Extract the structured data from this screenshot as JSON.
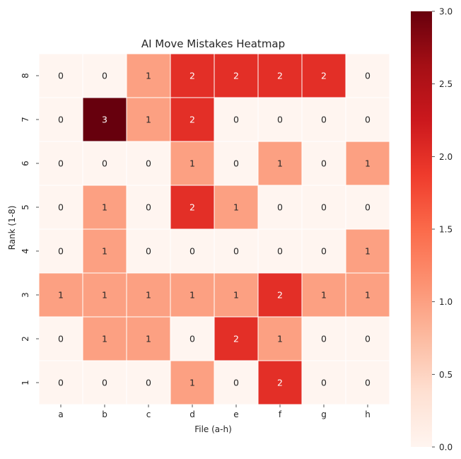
{
  "chart_data": {
    "type": "heatmap",
    "title": "AI Move Mistakes Heatmap",
    "xlabel": "File (a-h)",
    "ylabel": "Rank (1-8)",
    "x_categories": [
      "a",
      "b",
      "c",
      "d",
      "e",
      "f",
      "g",
      "h"
    ],
    "y_categories": [
      "8",
      "7",
      "6",
      "5",
      "4",
      "3",
      "2",
      "1"
    ],
    "values": [
      [
        0,
        0,
        1,
        2,
        2,
        2,
        2,
        0
      ],
      [
        0,
        3,
        1,
        2,
        0,
        0,
        0,
        0
      ],
      [
        0,
        0,
        0,
        1,
        0,
        1,
        0,
        1
      ],
      [
        0,
        1,
        0,
        2,
        1,
        0,
        0,
        0
      ],
      [
        0,
        1,
        0,
        0,
        0,
        0,
        0,
        1
      ],
      [
        1,
        1,
        1,
        1,
        1,
        2,
        1,
        1
      ],
      [
        0,
        1,
        1,
        0,
        2,
        1,
        0,
        0
      ],
      [
        0,
        0,
        0,
        1,
        0,
        2,
        0,
        0
      ]
    ],
    "colormap": "Reds",
    "vmin": 0,
    "vmax": 3,
    "colorbar_ticks": [
      "0.0",
      "0.5",
      "1.0",
      "1.5",
      "2.0",
      "2.5",
      "3.0"
    ],
    "annotations": true
  }
}
